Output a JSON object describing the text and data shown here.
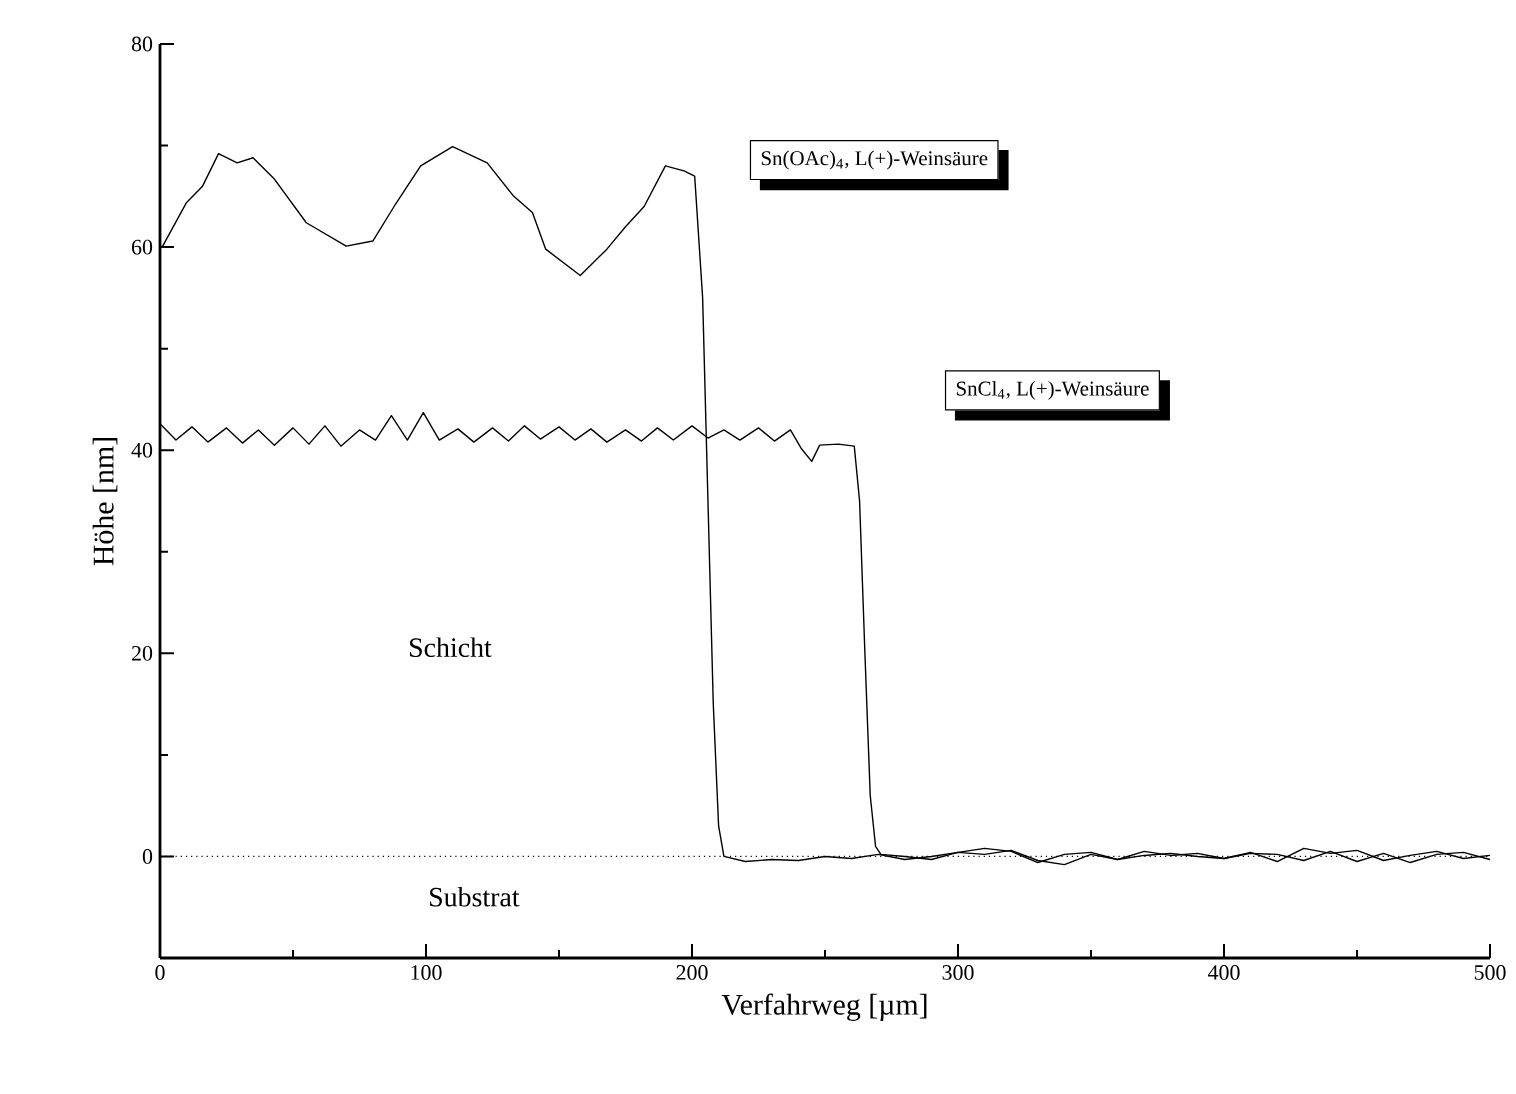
{
  "chart_data": {
    "type": "line",
    "xlabel": "Verfahrweg [µm]",
    "ylabel": "Höhe [nm]",
    "xlim": [
      0,
      500
    ],
    "ylim": [
      -10,
      80
    ],
    "xticks": [
      0,
      100,
      200,
      300,
      400,
      500
    ],
    "yticks": [
      0,
      20,
      40,
      60,
      80
    ],
    "grid": false,
    "legend": "top right",
    "marker": "none",
    "line_style": "solid",
    "ref_lines": [
      {
        "axis": "y",
        "value": 0,
        "line_style": "dotted",
        "color": "#000000"
      }
    ],
    "annotations": [
      "Schicht",
      "Substrat"
    ],
    "series": [
      {
        "name": "Sn(OAc)$_{4}$, L(+)-Weinsäure",
        "color": "#000000",
        "x": [
          0,
          1,
          10,
          16,
          22,
          29,
          35,
          43,
          55,
          70,
          80,
          88,
          98,
          110,
          123,
          133,
          140,
          145,
          158,
          168,
          175,
          182,
          190,
          197,
          201,
          204,
          206,
          208,
          210,
          212,
          220,
          230,
          240,
          250,
          260,
          270,
          280,
          290,
          300,
          310,
          320,
          330,
          340,
          350,
          360,
          370,
          380,
          390,
          400,
          410,
          420,
          430,
          440,
          450,
          460,
          470,
          480,
          490,
          500
        ],
        "values": [
          60,
          60.1,
          64.4,
          66,
          69.2,
          68.3,
          68.8,
          66.7,
          62.4,
          60.1,
          60.6,
          64,
          68,
          69.9,
          68.3,
          65,
          63.4,
          59.8,
          57.2,
          59.8,
          62,
          64,
          68,
          67.5,
          67,
          55,
          35,
          15,
          3,
          0,
          -0.5,
          -0.3,
          -0.4,
          0,
          -0.2,
          0.2,
          -0.3,
          0,
          0.4,
          0.2,
          0.6,
          -0.4,
          -0.8,
          0.2,
          -0.3,
          0.1,
          0.3,
          0,
          -0.2,
          0.3,
          0.2,
          -0.4,
          0.5,
          -0.5,
          0.3,
          -0.6,
          0.2,
          0.4,
          -0.3
        ]
      },
      {
        "name": "SnCl$_{4}$, L(+)-Weinsäure",
        "color": "#000000",
        "x": [
          0,
          6,
          12,
          18,
          25,
          31,
          37,
          43,
          50,
          56,
          62,
          68,
          75,
          81,
          87,
          93,
          99,
          105,
          112,
          118,
          125,
          131,
          137,
          143,
          150,
          156,
          162,
          168,
          175,
          181,
          187,
          193,
          200,
          206,
          212,
          218,
          225,
          231,
          237,
          241,
          245,
          248,
          255,
          261,
          263,
          265,
          267,
          269,
          271,
          280,
          290,
          300,
          310,
          320,
          330,
          340,
          350,
          360,
          370,
          380,
          390,
          400,
          410,
          420,
          430,
          440,
          450,
          460,
          470,
          480,
          490,
          500
        ],
        "values": [
          42.6,
          41,
          42.3,
          40.8,
          42.2,
          40.7,
          42,
          40.5,
          42.2,
          40.6,
          42.4,
          40.4,
          42,
          41,
          43.4,
          41,
          43.7,
          41,
          42.1,
          40.8,
          42.2,
          40.9,
          42.4,
          41.1,
          42.3,
          41,
          42.1,
          40.8,
          42,
          40.9,
          42.2,
          41,
          42.4,
          41.2,
          42,
          41,
          42.2,
          40.9,
          42,
          40.2,
          38.9,
          40.5,
          40.6,
          40.4,
          35,
          20,
          6,
          1,
          0.2,
          0,
          -0.3,
          0.4,
          0.8,
          0.5,
          -0.6,
          0.2,
          0.4,
          -0.3,
          0.5,
          0.1,
          0.3,
          -0.2,
          0.4,
          -0.5,
          0.8,
          0.3,
          0.6,
          -0.4,
          0.1,
          0.5,
          -0.2,
          0.1
        ]
      }
    ]
  }
}
